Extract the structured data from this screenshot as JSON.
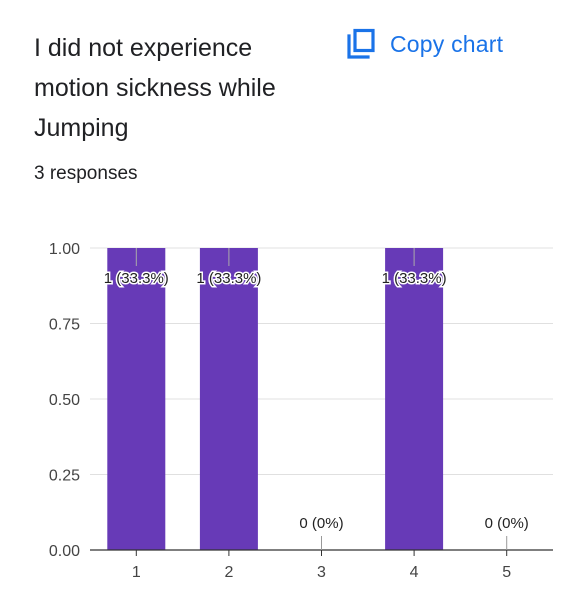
{
  "header": {
    "title": "I did not experience motion sickness while Jumping",
    "copy_label": "Copy chart",
    "copy_icon": "copy-icon",
    "responses": "3 responses"
  },
  "colors": {
    "bar": "#673ab7",
    "accent": "#1a73e8",
    "grid": "#e0e0e0",
    "axis": "#333333",
    "text": "#202124"
  },
  "chart_data": {
    "type": "bar",
    "categories": [
      "1",
      "2",
      "3",
      "4",
      "5"
    ],
    "values": [
      1,
      1,
      0,
      1,
      0
    ],
    "labels": [
      "1 (33.3%)",
      "1 (33.3%)",
      "0 (0%)",
      "1 (33.3%)",
      "0 (0%)"
    ],
    "ylim": [
      0,
      1
    ],
    "yticks": [
      "0.00",
      "0.25",
      "0.50",
      "0.75",
      "1.00"
    ],
    "ytick_values": [
      0,
      0.25,
      0.5,
      0.75,
      1
    ],
    "grid": true,
    "title": "",
    "xlabel": "",
    "ylabel": ""
  }
}
